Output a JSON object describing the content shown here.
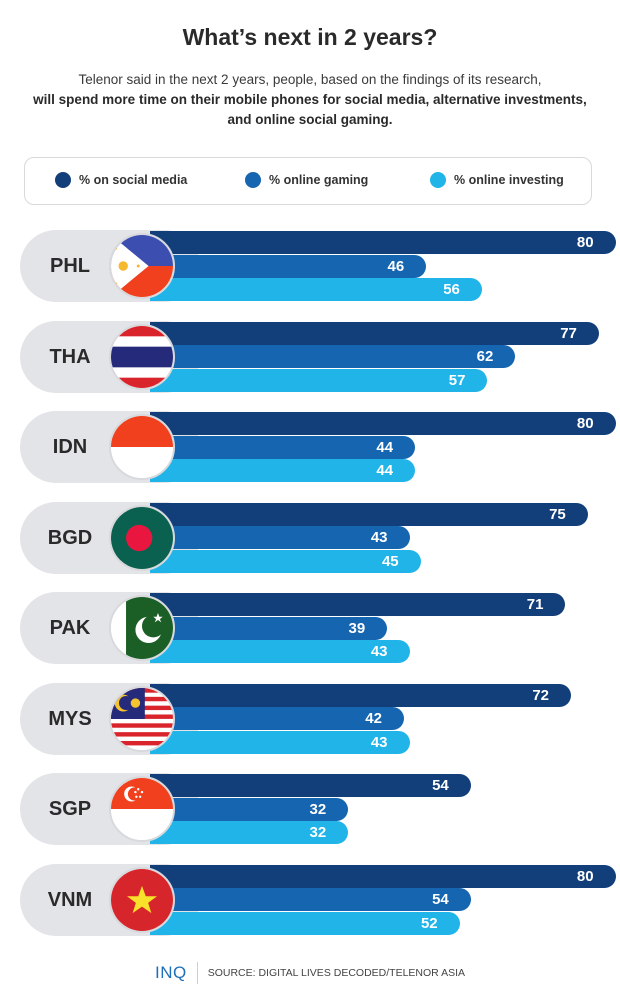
{
  "header": {
    "title": "What’s next in 2 years?",
    "subtitle_plain": "Telenor said in the next 2 years, people, based on the findings of its research,",
    "subtitle_bold": "will spend more time on their mobile phones for social media, alternative investments, and online social gaming."
  },
  "legend": [
    {
      "label": "% on social media",
      "color": "#123f7a"
    },
    {
      "label": "% online gaming",
      "color": "#1565b0"
    },
    {
      "label": "% online investing",
      "color": "#20b4e8"
    }
  ],
  "footer": {
    "logo": "INQ",
    "source": "SOURCE: DIGITAL LIVES DECODED/TELENOR ASIA"
  },
  "chart_data": {
    "type": "bar",
    "orientation": "horizontal",
    "title": "What’s next in 2 years?",
    "categories": [
      "PHL",
      "THA",
      "IDN",
      "BGD",
      "PAK",
      "MYS",
      "SGP",
      "VNM"
    ],
    "series": [
      {
        "name": "% on social media",
        "color": "#123f7a",
        "values": [
          80,
          77,
          80,
          75,
          71,
          72,
          54,
          80
        ]
      },
      {
        "name": "% online gaming",
        "color": "#1565b0",
        "values": [
          46,
          62,
          44,
          43,
          39,
          42,
          32,
          54
        ]
      },
      {
        "name": "% online investing",
        "color": "#20b4e8",
        "values": [
          56,
          57,
          44,
          45,
          43,
          43,
          32,
          52
        ]
      }
    ],
    "xlabel": "",
    "ylabel": "",
    "grid": false,
    "legend_position": "top",
    "data_labels": true
  }
}
